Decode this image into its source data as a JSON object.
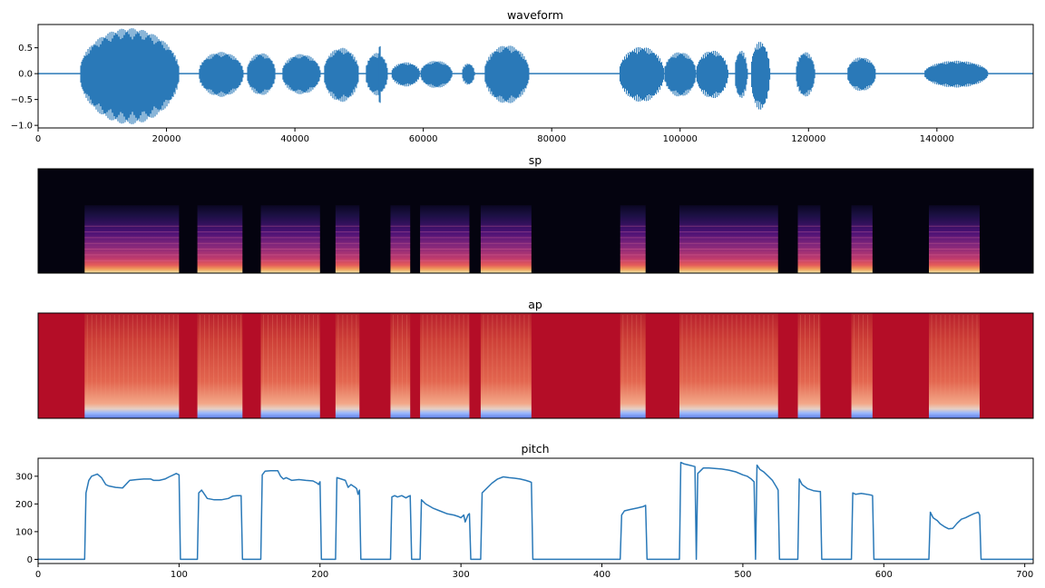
{
  "colors": {
    "line": "#2a79b8",
    "sp_background": "#04030f",
    "ap_background": "#b40d27"
  },
  "chart_data": [
    {
      "type": "line",
      "title": "waveform",
      "xlim": [
        0,
        155000
      ],
      "ylim": [
        -1.05,
        0.95
      ],
      "xticks": [
        0,
        20000,
        40000,
        60000,
        80000,
        100000,
        120000,
        140000
      ],
      "yticks": [
        -1.0,
        -0.5,
        0.0,
        0.5
      ],
      "x_tick_labels": [
        "0",
        "20000",
        "40000",
        "60000",
        "80000",
        "100000",
        "120000",
        "140000"
      ],
      "y_tick_labels": [
        "−1.0",
        "−0.5",
        "0.0",
        "0.5"
      ],
      "segments": [
        {
          "start": 6500,
          "end": 22000,
          "amp_pos": 0.88,
          "amp_neg": 0.98
        },
        {
          "start": 25000,
          "end": 32000,
          "amp_pos": 0.42,
          "amp_neg": 0.45
        },
        {
          "start": 32500,
          "end": 37000,
          "amp_pos": 0.4,
          "amp_neg": 0.42
        },
        {
          "start": 38000,
          "end": 44000,
          "amp_pos": 0.38,
          "amp_neg": 0.4
        },
        {
          "start": 44500,
          "end": 50000,
          "amp_pos": 0.5,
          "amp_neg": 0.55
        },
        {
          "start": 51000,
          "end": 54500,
          "amp_pos": 0.4,
          "amp_neg": 0.42
        },
        {
          "start": 53000,
          "end": 53400,
          "amp_pos": 0.62,
          "amp_neg": 0.66
        },
        {
          "start": 55000,
          "end": 59500,
          "amp_pos": 0.22,
          "amp_neg": 0.25
        },
        {
          "start": 59500,
          "end": 64500,
          "amp_pos": 0.25,
          "amp_neg": 0.28
        },
        {
          "start": 66000,
          "end": 68000,
          "amp_pos": 0.2,
          "amp_neg": 0.22
        },
        {
          "start": 69500,
          "end": 76500,
          "amp_pos": 0.55,
          "amp_neg": 0.58
        },
        {
          "start": 90500,
          "end": 97500,
          "amp_pos": 0.52,
          "amp_neg": 0.55
        },
        {
          "start": 97500,
          "end": 102500,
          "amp_pos": 0.42,
          "amp_neg": 0.45
        },
        {
          "start": 102500,
          "end": 107500,
          "amp_pos": 0.45,
          "amp_neg": 0.48
        },
        {
          "start": 108500,
          "end": 110500,
          "amp_pos": 0.45,
          "amp_neg": 0.48
        },
        {
          "start": 111000,
          "end": 114000,
          "amp_pos": 0.62,
          "amp_neg": 0.7
        },
        {
          "start": 118000,
          "end": 121000,
          "amp_pos": 0.42,
          "amp_neg": 0.45
        },
        {
          "start": 126000,
          "end": 130500,
          "amp_pos": 0.32,
          "amp_neg": 0.34
        },
        {
          "start": 138000,
          "end": 148000,
          "amp_pos": 0.25,
          "amp_neg": 0.27
        }
      ]
    },
    {
      "type": "heatmap",
      "title": "sp",
      "frames": 706,
      "voiced_regions": [
        [
          33,
          100
        ],
        [
          113,
          145
        ],
        [
          158,
          200
        ],
        [
          211,
          228
        ],
        [
          250,
          264
        ],
        [
          271,
          306
        ],
        [
          314,
          350
        ],
        [
          413,
          431
        ],
        [
          455,
          525
        ],
        [
          539,
          555
        ],
        [
          577,
          592
        ],
        [
          632,
          668
        ]
      ],
      "colormap": "magma"
    },
    {
      "type": "heatmap",
      "title": "ap",
      "frames": 706,
      "voiced_regions": [
        [
          33,
          100
        ],
        [
          113,
          145
        ],
        [
          158,
          200
        ],
        [
          211,
          228
        ],
        [
          250,
          264
        ],
        [
          271,
          306
        ],
        [
          314,
          350
        ],
        [
          413,
          431
        ],
        [
          455,
          525
        ],
        [
          539,
          555
        ],
        [
          577,
          592
        ],
        [
          632,
          668
        ]
      ],
      "colormap": "coolwarm"
    },
    {
      "type": "line",
      "title": "pitch",
      "xlim": [
        0,
        706
      ],
      "ylim": [
        -15,
        365
      ],
      "xticks": [
        0,
        100,
        200,
        300,
        400,
        500,
        600,
        700
      ],
      "yticks": [
        0,
        100,
        200,
        300
      ],
      "x_tick_labels": [
        "0",
        "100",
        "200",
        "300",
        "400",
        "500",
        "600",
        "700"
      ],
      "y_tick_labels": [
        "0",
        "100",
        "200",
        "300"
      ],
      "x": [
        0,
        33,
        34,
        36,
        38,
        42,
        45,
        48,
        50,
        55,
        60,
        65,
        70,
        75,
        80,
        82,
        86,
        90,
        93,
        96,
        98,
        100,
        101,
        113,
        114,
        116,
        118,
        120,
        125,
        130,
        135,
        138,
        141,
        144,
        145,
        158,
        159,
        161,
        165,
        170,
        172,
        174,
        176,
        180,
        185,
        190,
        195,
        198,
        199,
        200,
        201,
        211,
        212,
        215,
        218,
        220,
        222,
        225,
        226,
        227,
        228,
        229,
        250,
        251,
        253,
        255,
        258,
        261,
        263,
        264,
        265,
        271,
        272,
        275,
        280,
        285,
        290,
        295,
        298,
        300,
        302,
        303,
        305,
        306,
        307,
        314,
        315,
        318,
        322,
        326,
        330,
        334,
        338,
        342,
        346,
        349,
        350,
        351,
        413,
        414,
        416,
        420,
        425,
        429,
        431,
        432,
        455,
        456,
        458,
        462,
        466,
        467,
        468,
        472,
        476,
        480,
        485,
        490,
        495,
        500,
        503,
        506,
        508,
        509,
        510,
        512,
        515,
        518,
        521,
        524,
        525,
        526,
        539,
        540,
        542,
        546,
        550,
        554,
        555,
        556,
        577,
        578,
        580,
        584,
        588,
        591,
        592,
        593,
        632,
        633,
        635,
        638,
        640,
        643,
        646,
        649,
        652,
        655,
        658,
        661,
        664,
        667,
        668,
        669,
        706
      ],
      "y": [
        0,
        0,
        240,
        285,
        300,
        308,
        295,
        270,
        265,
        260,
        258,
        285,
        288,
        290,
        290,
        285,
        285,
        290,
        298,
        305,
        310,
        305,
        0,
        0,
        240,
        250,
        235,
        220,
        215,
        215,
        220,
        228,
        230,
        230,
        0,
        0,
        305,
        318,
        320,
        320,
        300,
        290,
        295,
        285,
        288,
        285,
        283,
        275,
        270,
        280,
        0,
        0,
        295,
        290,
        285,
        260,
        270,
        260,
        255,
        235,
        250,
        0,
        0,
        225,
        230,
        225,
        230,
        222,
        228,
        230,
        0,
        0,
        215,
        200,
        185,
        175,
        165,
        160,
        155,
        150,
        160,
        135,
        160,
        165,
        0,
        0,
        240,
        255,
        275,
        290,
        298,
        295,
        293,
        290,
        285,
        280,
        278,
        0,
        0,
        160,
        175,
        180,
        185,
        190,
        195,
        0,
        0,
        350,
        345,
        340,
        335,
        0,
        310,
        330,
        330,
        328,
        326,
        322,
        316,
        305,
        300,
        290,
        280,
        0,
        340,
        325,
        315,
        300,
        285,
        260,
        250,
        0,
        0,
        290,
        270,
        255,
        248,
        245,
        245,
        0,
        0,
        240,
        235,
        238,
        235,
        232,
        230,
        0,
        0,
        170,
        150,
        140,
        128,
        118,
        110,
        112,
        130,
        145,
        150,
        158,
        165,
        170,
        160,
        0,
        0
      ]
    }
  ]
}
